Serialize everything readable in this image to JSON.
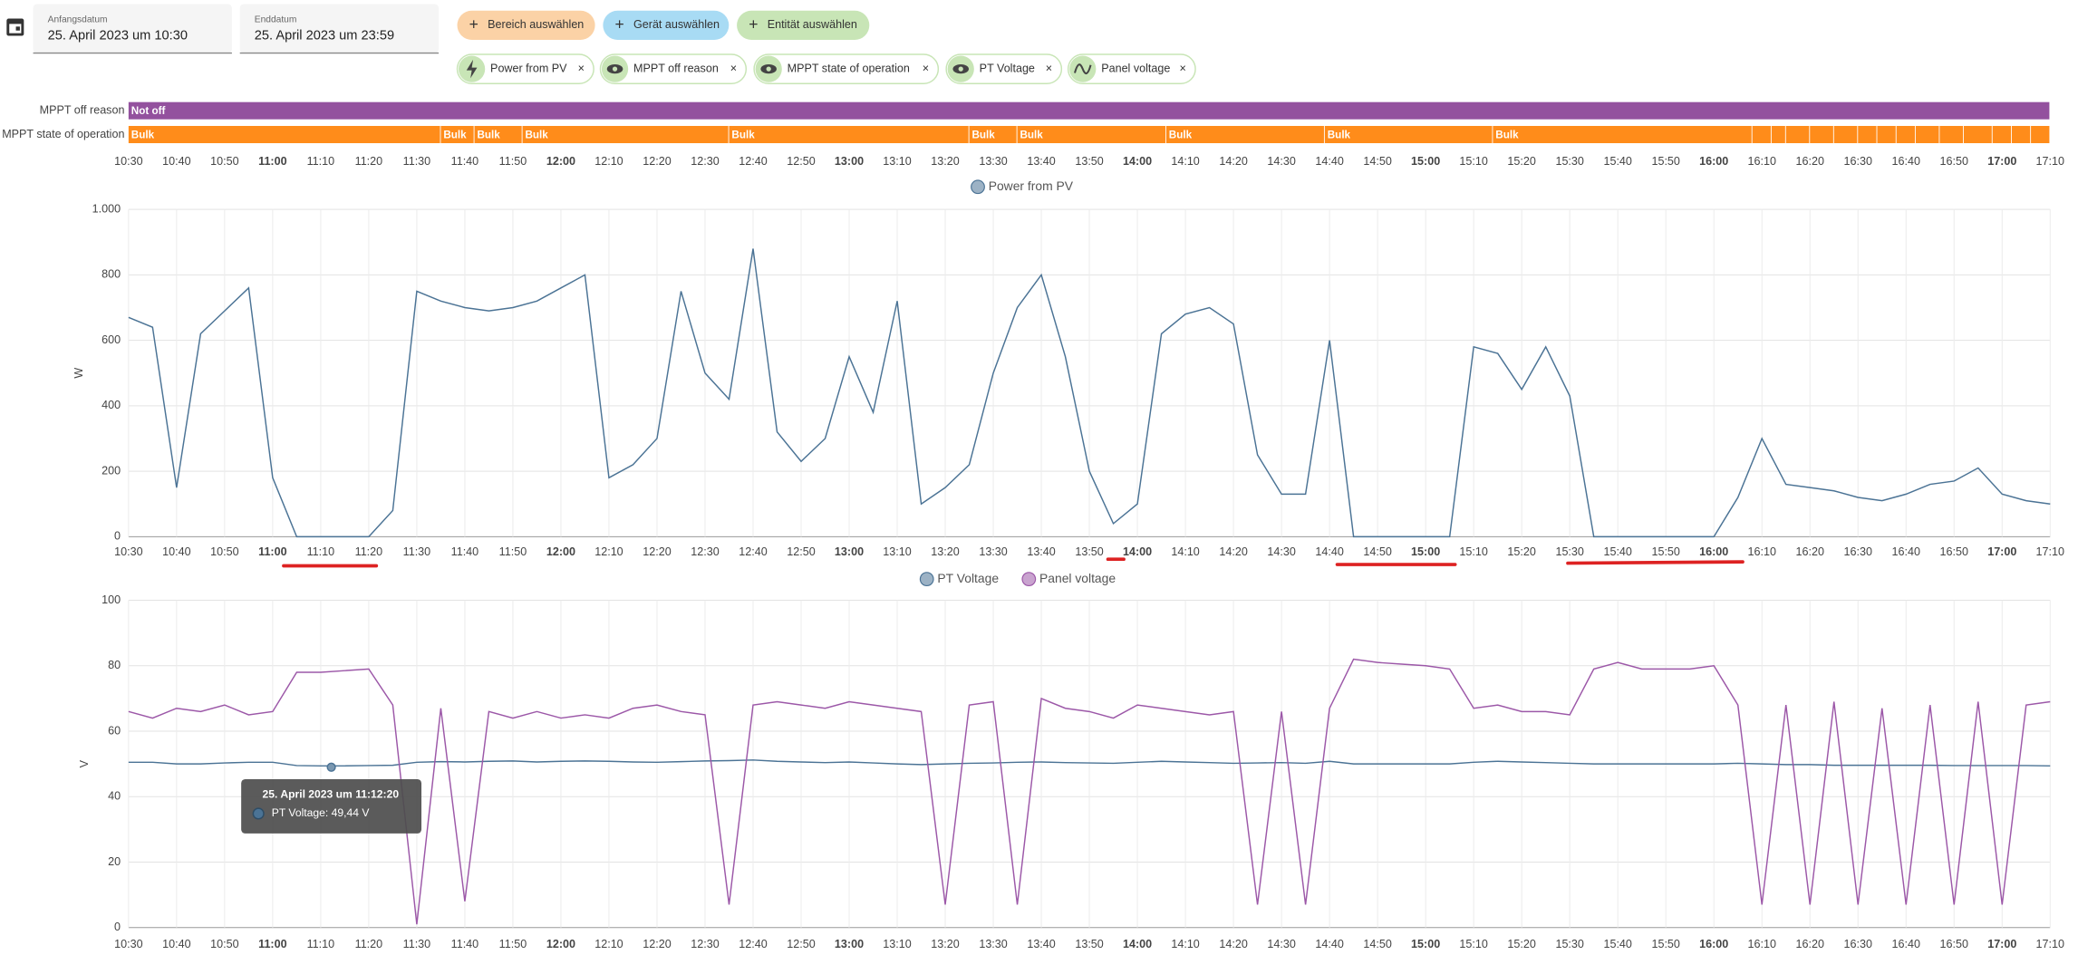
{
  "header": {
    "start_label": "Anfangsdatum",
    "start_value": "25. April 2023 um 10:30",
    "end_label": "Enddatum",
    "end_value": "25. April 2023 um 23:59"
  },
  "buttons": [
    "Bereich auswählen",
    "Gerät auswählen",
    "Entität auswählen"
  ],
  "chips": [
    "Power from PV",
    "MPPT off reason",
    "MPPT state of operation",
    "PT Voltage",
    "Panel voltage"
  ],
  "timeline": {
    "xlim": [
      "10:30",
      "17:10"
    ],
    "xticks": [
      "10:30",
      "10:40",
      "10:50",
      "11:00",
      "11:10",
      "11:20",
      "11:30",
      "11:40",
      "11:50",
      "12:00",
      "12:10",
      "12:20",
      "12:30",
      "12:40",
      "12:50",
      "13:00",
      "13:10",
      "13:20",
      "13:30",
      "13:40",
      "13:50",
      "14:00",
      "14:10",
      "14:20",
      "14:30",
      "14:40",
      "14:50",
      "15:00",
      "15:10",
      "15:20",
      "15:30",
      "15:40",
      "15:50",
      "16:00",
      "16:10",
      "16:20",
      "16:30",
      "16:40",
      "16:50",
      "17:00",
      "17:10"
    ],
    "rows": [
      {
        "label": "MPPT off reason",
        "color": "#93519e",
        "segments": [
          {
            "start": "10:30",
            "label": "Not off"
          }
        ]
      },
      {
        "label": "MPPT state of operation",
        "color": "#ff8c1a",
        "segments": [
          {
            "start": "10:30",
            "label": "Bulk"
          },
          {
            "start": "11:35",
            "label": "Bulk"
          },
          {
            "start": "11:42",
            "label": "Bulk"
          },
          {
            "start": "11:52",
            "label": "Bulk"
          },
          {
            "start": "12:35",
            "label": "Bulk"
          },
          {
            "start": "13:25",
            "label": "Bulk"
          },
          {
            "start": "13:35",
            "label": "Bulk"
          },
          {
            "start": "14:06",
            "label": "Bulk"
          },
          {
            "start": "14:39",
            "label": "Bulk"
          },
          {
            "start": "15:14",
            "label": "Bulk"
          },
          {
            "start": "16:08",
            "label": null
          },
          {
            "start": "16:12",
            "label": null
          },
          {
            "start": "16:15",
            "label": null
          },
          {
            "start": "16:20",
            "label": null
          },
          {
            "start": "16:25",
            "label": null
          },
          {
            "start": "16:30",
            "label": null
          },
          {
            "start": "16:34",
            "label": null
          },
          {
            "start": "16:38",
            "label": null
          },
          {
            "start": "16:42",
            "label": null
          },
          {
            "start": "16:47",
            "label": null
          },
          {
            "start": "16:52",
            "label": null
          },
          {
            "start": "16:58",
            "label": null
          },
          {
            "start": "17:02",
            "label": null
          },
          {
            "start": "17:06",
            "label": null
          }
        ]
      }
    ]
  },
  "chart_data": [
    {
      "type": "line",
      "ylabel": "W",
      "ylim": [
        0,
        1000
      ],
      "yticks": [
        0,
        200,
        400,
        600,
        800,
        {
          "value": 1000,
          "label": "1.000"
        }
      ],
      "grid": true,
      "xlim": [
        "10:30",
        "17:10"
      ],
      "xticks": [
        "10:30",
        "10:40",
        "10:50",
        "11:00",
        "11:10",
        "11:20",
        "11:30",
        "11:40",
        "11:50",
        "12:00",
        "12:10",
        "12:20",
        "12:30",
        "12:40",
        "12:50",
        "13:00",
        "13:10",
        "13:20",
        "13:30",
        "13:40",
        "13:50",
        "14:00",
        "14:10",
        "14:20",
        "14:30",
        "14:40",
        "14:50",
        "15:00",
        "15:10",
        "15:20",
        "15:30",
        "15:40",
        "15:50",
        "16:00",
        "16:10",
        "16:20",
        "16:30",
        "16:40",
        "16:50",
        "17:00",
        "17:10"
      ],
      "x": [
        "10:30",
        "10:35",
        "10:40",
        "10:45",
        "10:50",
        "10:55",
        "11:00",
        "11:05",
        "11:10",
        "11:15",
        "11:20",
        "11:25",
        "11:30",
        "11:35",
        "11:40",
        "11:45",
        "11:50",
        "11:55",
        "12:00",
        "12:05",
        "12:10",
        "12:15",
        "12:20",
        "12:25",
        "12:30",
        "12:35",
        "12:40",
        "12:45",
        "12:50",
        "12:55",
        "13:00",
        "13:05",
        "13:10",
        "13:15",
        "13:20",
        "13:25",
        "13:30",
        "13:35",
        "13:40",
        "13:45",
        "13:50",
        "13:55",
        "14:00",
        "14:05",
        "14:10",
        "14:15",
        "14:20",
        "14:25",
        "14:30",
        "14:35",
        "14:40",
        "14:45",
        "14:50",
        "14:55",
        "15:00",
        "15:05",
        "15:10",
        "15:15",
        "15:20",
        "15:25",
        "15:30",
        "15:35",
        "15:40",
        "15:45",
        "15:50",
        "15:55",
        "16:00",
        "16:05",
        "16:10",
        "16:15",
        "16:20",
        "16:25",
        "16:30",
        "16:35",
        "16:40",
        "16:45",
        "16:50",
        "16:55",
        "17:00",
        "17:05",
        "17:10"
      ],
      "series": [
        {
          "name": "Power from PV",
          "color": "#4b7395",
          "values": [
            670,
            640,
            150,
            620,
            690,
            760,
            180,
            0,
            0,
            0,
            0,
            80,
            750,
            720,
            700,
            690,
            700,
            720,
            760,
            800,
            180,
            220,
            300,
            750,
            500,
            420,
            880,
            320,
            230,
            300,
            550,
            380,
            720,
            100,
            150,
            220,
            500,
            700,
            800,
            550,
            200,
            40,
            100,
            620,
            680,
            700,
            650,
            250,
            130,
            130,
            600,
            0,
            0,
            0,
            0,
            0,
            580,
            560,
            450,
            580,
            430,
            0,
            0,
            0,
            0,
            0,
            0,
            120,
            300,
            160,
            150,
            140,
            120,
            110,
            130,
            160,
            170,
            210,
            130,
            110,
            100
          ]
        }
      ]
    },
    {
      "type": "line",
      "ylabel": "V",
      "ylim": [
        0,
        100
      ],
      "yticks": [
        0,
        20,
        40,
        60,
        80,
        100
      ],
      "grid": true,
      "xlim": [
        "10:30",
        "17:10"
      ],
      "xticks": [
        "10:30",
        "10:40",
        "10:50",
        "11:00",
        "11:10",
        "11:20",
        "11:30",
        "11:40",
        "11:50",
        "12:00",
        "12:10",
        "12:20",
        "12:30",
        "12:40",
        "12:50",
        "13:00",
        "13:10",
        "13:20",
        "13:30",
        "13:40",
        "13:50",
        "14:00",
        "14:10",
        "14:20",
        "14:30",
        "14:40",
        "14:50",
        "15:00",
        "15:10",
        "15:20",
        "15:30",
        "15:40",
        "15:50",
        "16:00",
        "16:10",
        "16:20",
        "16:30",
        "16:40",
        "16:50",
        "17:00",
        "17:10"
      ],
      "x": [
        "10:30",
        "10:35",
        "10:40",
        "10:45",
        "10:50",
        "10:55",
        "11:00",
        "11:05",
        "11:10",
        "11:15",
        "11:20",
        "11:25",
        "11:30",
        "11:35",
        "11:40",
        "11:45",
        "11:50",
        "11:55",
        "12:00",
        "12:05",
        "12:10",
        "12:15",
        "12:20",
        "12:25",
        "12:30",
        "12:35",
        "12:40",
        "12:45",
        "12:50",
        "12:55",
        "13:00",
        "13:05",
        "13:10",
        "13:15",
        "13:20",
        "13:25",
        "13:30",
        "13:35",
        "13:40",
        "13:45",
        "13:50",
        "13:55",
        "14:00",
        "14:05",
        "14:10",
        "14:15",
        "14:20",
        "14:25",
        "14:30",
        "14:35",
        "14:40",
        "14:45",
        "14:50",
        "14:55",
        "15:00",
        "15:05",
        "15:10",
        "15:15",
        "15:20",
        "15:25",
        "15:30",
        "15:35",
        "15:40",
        "15:45",
        "15:50",
        "15:55",
        "16:00",
        "16:05",
        "16:10",
        "16:15",
        "16:20",
        "16:25",
        "16:30",
        "16:35",
        "16:40",
        "16:45",
        "16:50",
        "16:55",
        "17:00",
        "17:05",
        "17:10"
      ],
      "series": [
        {
          "name": "PT Voltage",
          "color": "#4b7395",
          "values": [
            50.5,
            50.5,
            50,
            50,
            50.3,
            50.5,
            50.5,
            49.5,
            49.4,
            49.4,
            49.5,
            49.6,
            50.5,
            50.7,
            50.6,
            50.8,
            50.9,
            50.6,
            50.8,
            50.9,
            50.8,
            50.6,
            50.5,
            50.7,
            50.9,
            51,
            51.2,
            50.8,
            50.6,
            50.4,
            50.6,
            50.3,
            50,
            49.8,
            50,
            50.2,
            50.3,
            50.5,
            50.6,
            50.4,
            50.3,
            50.2,
            50.5,
            50.8,
            50.6,
            50.4,
            50.2,
            50.3,
            50.4,
            50.2,
            50.8,
            50,
            50,
            50,
            50,
            50,
            50.5,
            50.8,
            50.6,
            50.4,
            50.2,
            50,
            50,
            50,
            50,
            50,
            50,
            50.2,
            50,
            49.8,
            49.8,
            49.6,
            49.6,
            49.6,
            49.6,
            49.6,
            49.5,
            49.5,
            49.5,
            49.5,
            49.4
          ]
        },
        {
          "name": "Panel voltage",
          "color": "#9c58a8",
          "values": [
            66,
            64,
            67,
            66,
            68,
            65,
            66,
            78,
            78,
            78.5,
            79,
            68,
            1,
            67,
            8,
            66,
            64,
            66,
            64,
            65,
            64,
            67,
            68,
            66,
            65,
            7,
            68,
            69,
            68,
            67,
            69,
            68,
            67,
            66,
            7,
            68,
            69,
            7,
            70,
            67,
            66,
            64,
            68,
            67,
            66,
            65,
            66,
            7,
            66,
            7,
            67,
            82,
            81,
            80.5,
            80,
            79,
            67,
            68,
            66,
            66,
            65,
            79,
            81,
            79,
            79,
            79,
            80,
            68,
            7,
            68,
            7,
            69,
            7,
            67,
            7,
            68,
            7,
            69,
            7,
            68,
            69
          ]
        }
      ],
      "tooltip": {
        "title": "25. April 2023 um 11:12:20",
        "line": "PT Voltage: 49,44 V"
      }
    }
  ]
}
